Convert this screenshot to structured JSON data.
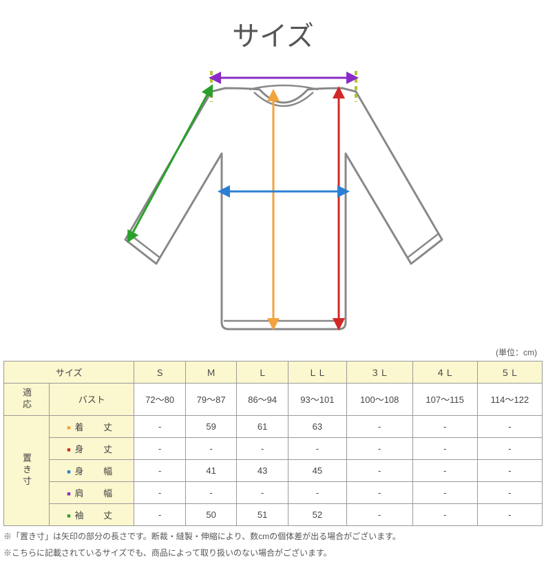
{
  "title": "サイズ",
  "unit_label": "(単位：cm)",
  "diagram": {
    "colors": {
      "outline": "#888888",
      "kitake": "#f2a33c",
      "mitake": "#d22727",
      "mihaba": "#2a7fd4",
      "katahaba": "#8a2bc6",
      "sodetake": "#2aa02a",
      "dash_lime": "#b4c238"
    }
  },
  "table": {
    "header_bg": "#fbf7cf",
    "border_color": "#999999",
    "size_header": "サイズ",
    "sizes": [
      "Ｓ",
      "Ｍ",
      "Ｌ",
      "ＬＬ",
      "３Ｌ",
      "４Ｌ",
      "５Ｌ"
    ],
    "fit_label": "適応",
    "okisun_label": "置き寸",
    "bust_label": "バスト",
    "bust_values": [
      "72～80",
      "79～87",
      "86～94",
      "93～101",
      "100～108",
      "107～115",
      "114～122"
    ],
    "measure_rows": [
      {
        "marker_color": "#f2a33c",
        "label": "着　丈",
        "values": [
          "-",
          "59",
          "61",
          "63",
          "-",
          "-",
          "-"
        ]
      },
      {
        "marker_color": "#d22727",
        "label": "身　丈",
        "values": [
          "-",
          "-",
          "-",
          "-",
          "-",
          "-",
          "-"
        ]
      },
      {
        "marker_color": "#2a7fd4",
        "label": "身　幅",
        "values": [
          "-",
          "41",
          "43",
          "45",
          "-",
          "-",
          "-"
        ]
      },
      {
        "marker_color": "#8a2bc6",
        "label": "肩　幅",
        "values": [
          "-",
          "-",
          "-",
          "-",
          "-",
          "-",
          "-"
        ]
      },
      {
        "marker_color": "#2aa02a",
        "label": "袖　丈",
        "values": [
          "-",
          "50",
          "51",
          "52",
          "-",
          "-",
          "-"
        ]
      }
    ]
  },
  "footnote1": "※「置き寸」は矢印の部分の長さです。断裁・縫製・伸縮により、数cmの個体差が出る場合がございます。",
  "footnote2": "※こちらに記載されているサイズでも、商品によって取り扱いのない場合がございます。"
}
